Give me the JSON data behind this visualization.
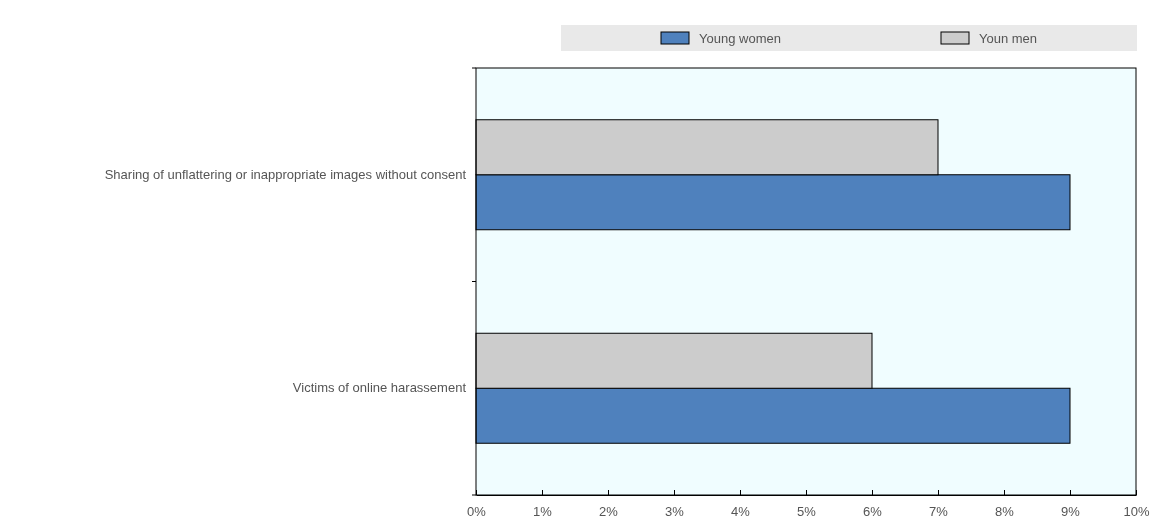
{
  "chart_data": {
    "type": "bar",
    "orientation": "horizontal",
    "categories": [
      "Sharing of unflattering or inappropriate images without consent",
      "Victims of online harassement"
    ],
    "series": [
      {
        "name": "Young women",
        "color": "#4f81bd",
        "values": [
          9,
          9
        ]
      },
      {
        "name": "Youn men",
        "color": "#cccccc",
        "values": [
          7,
          6
        ]
      }
    ],
    "xlim": [
      0,
      10
    ],
    "xticks": [
      {
        "value": 0,
        "label": "0%"
      },
      {
        "value": 1,
        "label": "1%"
      },
      {
        "value": 2,
        "label": "2%"
      },
      {
        "value": 3,
        "label": "3%"
      },
      {
        "value": 4,
        "label": "4%"
      },
      {
        "value": 5,
        "label": "5%"
      },
      {
        "value": 6,
        "label": "6%"
      },
      {
        "value": 7,
        "label": "7%"
      },
      {
        "value": 8,
        "label": "8%"
      },
      {
        "value": 9,
        "label": "9%"
      },
      {
        "value": 10,
        "label": "10%"
      }
    ],
    "grid": false,
    "legend": "top right"
  }
}
